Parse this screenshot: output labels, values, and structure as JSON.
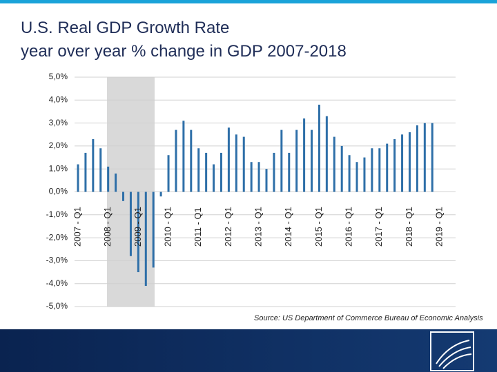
{
  "chart_data": {
    "type": "bar",
    "title": "U.S. Real GDP Growth Rate",
    "subtitle": "year over year % change in GDP 2007-2018",
    "source": "Source:  US Department of Commerce Bureau of Economic Analysis",
    "color": "#2e6fa8",
    "categories": [
      "2007 - Q1",
      null,
      null,
      null,
      "2008 - Q1",
      null,
      null,
      null,
      "2009 - Q1",
      null,
      null,
      null,
      "2010 - Q1",
      null,
      null,
      null,
      "2011 - Q1",
      null,
      null,
      null,
      "2012 - Q1",
      null,
      null,
      null,
      "2013 - Q1",
      null,
      null,
      null,
      "2014 - Q1",
      null,
      null,
      null,
      "2015 - Q1",
      null,
      null,
      null,
      "2016 - Q1",
      null,
      null,
      null,
      "2017 - Q1",
      null,
      null,
      null,
      "2018 - Q1",
      null,
      null,
      null,
      "2019 - Q1"
    ],
    "values": [
      1.2,
      1.7,
      2.3,
      1.9,
      1.1,
      0.8,
      -0.4,
      -2.8,
      -3.5,
      -4.1,
      -3.3,
      -0.2,
      1.6,
      2.7,
      3.1,
      2.7,
      1.9,
      1.7,
      1.2,
      1.7,
      2.8,
      2.5,
      2.4,
      1.3,
      1.3,
      1.0,
      1.7,
      2.7,
      1.7,
      2.7,
      3.2,
      2.7,
      3.8,
      3.3,
      2.4,
      2.0,
      1.6,
      1.3,
      1.5,
      1.9,
      1.9,
      2.1,
      2.3,
      2.5,
      2.6,
      2.9,
      3.0,
      3.0,
      null
    ],
    "ylim": [
      -5,
      5
    ],
    "yticks": [
      {
        "value": 5,
        "label": "5,0%"
      },
      {
        "value": 4,
        "label": "4,0%"
      },
      {
        "value": 3,
        "label": "3,0%"
      },
      {
        "value": 2,
        "label": "2,0%"
      },
      {
        "value": 1,
        "label": "1,0%"
      },
      {
        "value": 0,
        "label": "0,0%"
      },
      {
        "value": -1,
        "label": "-1,0%"
      },
      {
        "value": -2,
        "label": "-2,0%"
      },
      {
        "value": -3,
        "label": "-3,0%"
      },
      {
        "value": -4,
        "label": "-4,0%"
      },
      {
        "value": -5,
        "label": "-5,0%"
      }
    ],
    "grid": true
  }
}
